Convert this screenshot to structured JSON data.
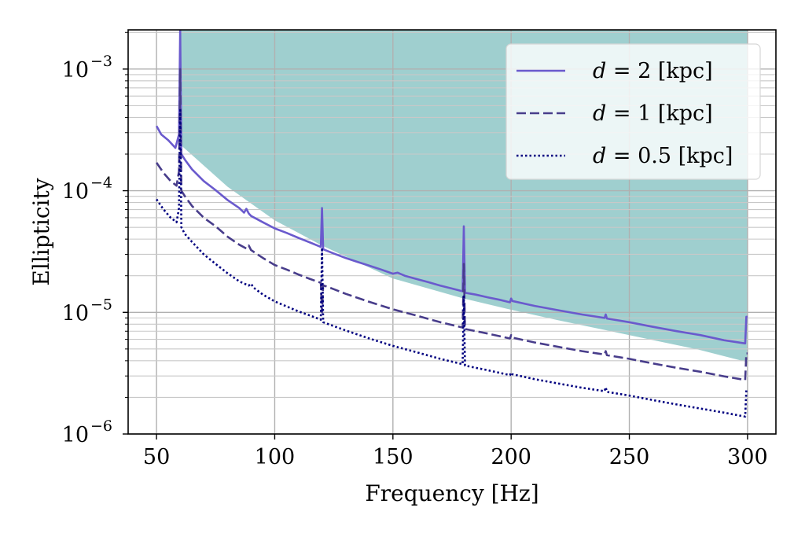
{
  "chart_data": {
    "type": "line",
    "title": "",
    "xlabel": "Frequency [Hz]",
    "ylabel": "Ellipticity",
    "xlim": [
      38,
      312
    ],
    "ylim": [
      1e-06,
      0.0021
    ],
    "yscale": "log",
    "grid": true,
    "legend_placement": "top-right",
    "x_ticks": [
      50,
      100,
      150,
      200,
      250,
      300
    ],
    "y_ticks": [
      {
        "value": 0.001,
        "base": "10",
        "exp": "−3"
      },
      {
        "value": 0.0001,
        "base": "10",
        "exp": "−4"
      },
      {
        "value": 1e-05,
        "base": "10",
        "exp": "−5"
      },
      {
        "value": 1e-06,
        "base": "10",
        "exp": "−6"
      }
    ],
    "excluded_region": {
      "color": "#9fcfcf",
      "upper": 0.0021,
      "lower_boundary": [
        [
          50,
          0.0021
        ],
        [
          60,
          0.0021
        ],
        [
          60,
          0.00024
        ],
        [
          80,
          0.000108
        ],
        [
          100,
          5.7e-05
        ],
        [
          120,
          3.55e-05
        ],
        [
          150,
          1.9e-05
        ],
        [
          180,
          1.3e-05
        ],
        [
          200,
          1.05e-05
        ],
        [
          220,
          8.6e-06
        ],
        [
          250,
          6.5e-06
        ],
        [
          280,
          4.9e-06
        ],
        [
          300,
          3.9e-06
        ],
        [
          300,
          0.0021
        ]
      ]
    },
    "series": [
      {
        "name": "d = 2 [kpc]",
        "label_var": "d",
        "label_rest": " = 2 [kpc]",
        "style": "solid",
        "color": "#6a5acd",
        "points": [
          [
            50,
            0.00034
          ],
          [
            52,
            0.00029
          ],
          [
            55,
            0.00026
          ],
          [
            58,
            0.000225
          ],
          [
            59.5,
            0.00029
          ],
          [
            60,
            0.0021
          ],
          [
            60.5,
            0.0002
          ],
          [
            62,
            0.00018
          ],
          [
            65,
            0.00015
          ],
          [
            70,
            0.00012
          ],
          [
            75,
            0.000101
          ],
          [
            80,
            8.4e-05
          ],
          [
            85,
            7.2e-05
          ],
          [
            87,
            6.6e-05
          ],
          [
            88,
            7.1e-05
          ],
          [
            89,
            6.5e-05
          ],
          [
            90,
            6.2e-05
          ],
          [
            95,
            5.5e-05
          ],
          [
            100,
            4.9e-05
          ],
          [
            105,
            4.5e-05
          ],
          [
            110,
            4.1e-05
          ],
          [
            115,
            3.75e-05
          ],
          [
            119.5,
            3.45e-05
          ],
          [
            120,
            7.2e-05
          ],
          [
            120.5,
            3.3e-05
          ],
          [
            125,
            3.05e-05
          ],
          [
            130,
            2.8e-05
          ],
          [
            135,
            2.6e-05
          ],
          [
            140,
            2.42e-05
          ],
          [
            145,
            2.25e-05
          ],
          [
            150,
            2.08e-05
          ],
          [
            152,
            2.12e-05
          ],
          [
            155,
            2e-05
          ],
          [
            160,
            1.88e-05
          ],
          [
            165,
            1.77e-05
          ],
          [
            170,
            1.66e-05
          ],
          [
            175,
            1.57e-05
          ],
          [
            179.5,
            1.49e-05
          ],
          [
            180,
            5.1e-05
          ],
          [
            180.5,
            1.45e-05
          ],
          [
            185,
            1.4e-05
          ],
          [
            190,
            1.33e-05
          ],
          [
            195,
            1.27e-05
          ],
          [
            199.5,
            1.21e-05
          ],
          [
            200,
            1.3e-05
          ],
          [
            200.5,
            1.24e-05
          ],
          [
            210,
            1.13e-05
          ],
          [
            220,
            1.04e-05
          ],
          [
            230,
            9.6e-06
          ],
          [
            239.5,
            9e-06
          ],
          [
            240,
            9.6e-06
          ],
          [
            240.5,
            8.9e-06
          ],
          [
            250,
            8.3e-06
          ],
          [
            260,
            7.6e-06
          ],
          [
            270,
            7e-06
          ],
          [
            280,
            6.5e-06
          ],
          [
            290,
            5.9e-06
          ],
          [
            299,
            5.55e-06
          ],
          [
            299.5,
            9.2e-06
          ],
          [
            300,
            9.2e-06
          ]
        ]
      },
      {
        "name": "d = 1 [kpc]",
        "label_var": "d",
        "label_rest": " = 1 [kpc]",
        "style": "dashed",
        "color": "#483d8b",
        "points": [
          [
            50,
            0.00017
          ],
          [
            53,
            0.00014
          ],
          [
            56,
            0.00012
          ],
          [
            58.5,
            0.00011
          ],
          [
            59.5,
            0.000145
          ],
          [
            60,
            0.001
          ],
          [
            60.5,
            0.0001
          ],
          [
            62,
            9e-05
          ],
          [
            65,
            7.5e-05
          ],
          [
            70,
            6e-05
          ],
          [
            75,
            5.1e-05
          ],
          [
            80,
            4.2e-05
          ],
          [
            85,
            3.6e-05
          ],
          [
            88,
            3.35e-05
          ],
          [
            89,
            3.55e-05
          ],
          [
            90,
            3.25e-05
          ],
          [
            95,
            2.8e-05
          ],
          [
            100,
            2.45e-05
          ],
          [
            105,
            2.25e-05
          ],
          [
            110,
            2.05e-05
          ],
          [
            115,
            1.88e-05
          ],
          [
            119.5,
            1.75e-05
          ],
          [
            120,
            1e-05
          ],
          [
            120.5,
            1.67e-05
          ],
          [
            125,
            1.55e-05
          ],
          [
            130,
            1.42e-05
          ],
          [
            140,
            1.22e-05
          ],
          [
            150,
            1.06e-05
          ],
          [
            160,
            9.4e-06
          ],
          [
            170,
            8.3e-06
          ],
          [
            179.5,
            7.5e-06
          ],
          [
            180,
            2.5e-05
          ],
          [
            180.5,
            7.3e-06
          ],
          [
            190,
            6.7e-06
          ],
          [
            199.5,
            6.1e-06
          ],
          [
            200,
            6.5e-06
          ],
          [
            200.5,
            6.2e-06
          ],
          [
            210,
            5.65e-06
          ],
          [
            220,
            5.2e-06
          ],
          [
            230,
            4.8e-06
          ],
          [
            239.5,
            4.5e-06
          ],
          [
            240,
            4.8e-06
          ],
          [
            240.5,
            4.45e-06
          ],
          [
            250,
            4.15e-06
          ],
          [
            260,
            3.8e-06
          ],
          [
            270,
            3.5e-06
          ],
          [
            280,
            3.25e-06
          ],
          [
            290,
            2.98e-06
          ],
          [
            299,
            2.78e-06
          ],
          [
            299.5,
            4.6e-06
          ],
          [
            300,
            4.6e-06
          ]
        ]
      },
      {
        "name": "d = 0.5 [kpc]",
        "label_var": "d",
        "label_rest": " = 0.5 [kpc]",
        "style": "dotted",
        "color": "#000080",
        "points": [
          [
            50,
            8.5e-05
          ],
          [
            53,
            7e-05
          ],
          [
            56,
            6e-05
          ],
          [
            58.5,
            5.5e-05
          ],
          [
            59.5,
            7.2e-05
          ],
          [
            60,
            0.00046
          ],
          [
            60.5,
            5e-05
          ],
          [
            62,
            4.4e-05
          ],
          [
            65,
            3.8e-05
          ],
          [
            70,
            3e-05
          ],
          [
            75,
            2.5e-05
          ],
          [
            80,
            2.1e-05
          ],
          [
            85,
            1.8e-05
          ],
          [
            89,
            1.66e-05
          ],
          [
            90,
            1.72e-05
          ],
          [
            91,
            1.6e-05
          ],
          [
            95,
            1.4e-05
          ],
          [
            100,
            1.23e-05
          ],
          [
            105,
            1.12e-05
          ],
          [
            110,
            1.02e-05
          ],
          [
            115,
            9.4e-06
          ],
          [
            119.5,
            8.7e-06
          ],
          [
            120,
            3.4e-05
          ],
          [
            120.5,
            8.3e-06
          ],
          [
            125,
            7.7e-06
          ],
          [
            130,
            7.1e-06
          ],
          [
            140,
            6.1e-06
          ],
          [
            150,
            5.3e-06
          ],
          [
            160,
            4.7e-06
          ],
          [
            170,
            4.15e-06
          ],
          [
            179.5,
            3.75e-06
          ],
          [
            180,
            1.35e-05
          ],
          [
            180.5,
            3.65e-06
          ],
          [
            190,
            3.35e-06
          ],
          [
            199.5,
            3.05e-06
          ],
          [
            200,
            3.2e-06
          ],
          [
            200.5,
            3.1e-06
          ],
          [
            210,
            2.82e-06
          ],
          [
            220,
            2.6e-06
          ],
          [
            230,
            2.4e-06
          ],
          [
            239.5,
            2.25e-06
          ],
          [
            240,
            2.42e-06
          ],
          [
            240.5,
            2.22e-06
          ],
          [
            250,
            2.07e-06
          ],
          [
            260,
            1.9e-06
          ],
          [
            270,
            1.75e-06
          ],
          [
            280,
            1.62e-06
          ],
          [
            290,
            1.5e-06
          ],
          [
            299,
            1.39e-06
          ],
          [
            299.5,
            2.3e-06
          ],
          [
            300,
            2.3e-06
          ]
        ]
      }
    ]
  }
}
